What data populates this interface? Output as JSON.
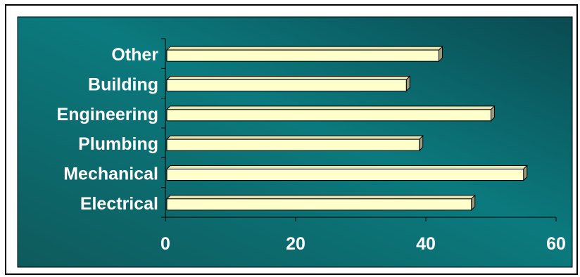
{
  "chart_data": {
    "type": "bar",
    "orientation": "horizontal",
    "categories": [
      "Electrical",
      "Mechanical",
      "Plumbing",
      "Engineering",
      "Building",
      "Other"
    ],
    "values": [
      47,
      55,
      39,
      50,
      37,
      42
    ],
    "xlim": [
      0,
      60
    ],
    "xticks": [
      0,
      20,
      40,
      60
    ],
    "title": "",
    "xlabel": "",
    "ylabel": "",
    "grid": false,
    "legend": false
  },
  "colors": {
    "bar_front": "#FFFFCC",
    "bar_top": "#E3E3B4",
    "bar_side": "#9C9C7C",
    "bar_outline": "#000000",
    "plot_gradient_start": "#0E5A5C",
    "plot_gradient_mid": "#0B7A7E",
    "plot_gradient_end": "#0A4A50",
    "text": "#FFFFFF"
  }
}
